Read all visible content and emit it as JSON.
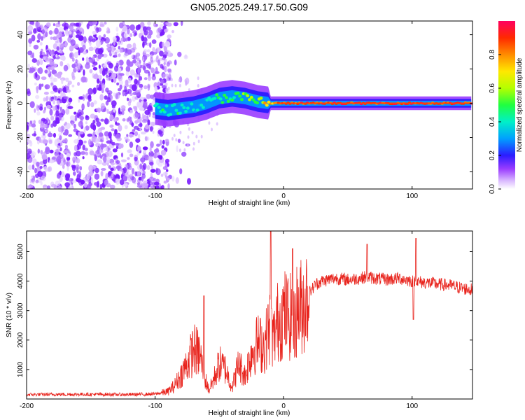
{
  "title": "GN05.2025.249.17.50.G09",
  "colors": {
    "snr_line": "#e8231c",
    "background": "#ffffff"
  },
  "chart_data": [
    {
      "type": "heatmap",
      "name": "spectrogram",
      "xlabel": "Height of straight line (km)",
      "ylabel": "Frequency (Hz)",
      "xlim": [
        -200,
        147
      ],
      "ylim": [
        -50,
        48
      ],
      "xticks": [
        -200,
        -100,
        0,
        100
      ],
      "yticks": [
        -40,
        -20,
        0,
        20,
        40
      ],
      "colorbar": {
        "label": "Normalized spectral amplitude",
        "range": [
          0,
          1
        ],
        "ticks": [
          0.0,
          0.2,
          0.4,
          0.6,
          0.8
        ]
      },
      "noise_region": {
        "x": [
          -200,
          -88
        ],
        "amplitude": 0.15
      },
      "signal_track": [
        {
          "x": -100,
          "freq": -3,
          "amplitude": 0.35
        },
        {
          "x": -90,
          "freq": -4,
          "amplitude": 0.4
        },
        {
          "x": -80,
          "freq": -3,
          "amplitude": 0.4
        },
        {
          "x": -70,
          "freq": -2,
          "amplitude": 0.35
        },
        {
          "x": -60,
          "freq": 0,
          "amplitude": 0.35
        },
        {
          "x": -50,
          "freq": 3,
          "amplitude": 0.45
        },
        {
          "x": -40,
          "freq": 4,
          "amplitude": 0.45
        },
        {
          "x": -30,
          "freq": 3,
          "amplitude": 0.5
        },
        {
          "x": -20,
          "freq": 1,
          "amplitude": 0.55
        },
        {
          "x": -10,
          "freq": 0,
          "amplitude": 0.75
        },
        {
          "x": 0,
          "freq": 0,
          "amplitude": 0.8
        },
        {
          "x": 20,
          "freq": 0,
          "amplitude": 0.9
        },
        {
          "x": 50,
          "freq": 0,
          "amplitude": 0.9
        },
        {
          "x": 100,
          "freq": 0,
          "amplitude": 0.9
        },
        {
          "x": 147,
          "freq": 0,
          "amplitude": 0.85
        }
      ]
    },
    {
      "type": "line",
      "name": "snr",
      "xlabel": "Height of straight line (km)",
      "ylabel": "SNR (10 * v/v)",
      "xlim": [
        -200,
        147
      ],
      "ylim": [
        0,
        5700
      ],
      "xticks": [
        -200,
        -100,
        0,
        100
      ],
      "yticks": [
        1000,
        2000,
        3000,
        4000,
        5000
      ],
      "series": [
        {
          "name": "SNR",
          "x": [
            -200,
            -160,
            -120,
            -100,
            -90,
            -85,
            -80,
            -75,
            -70,
            -65,
            -62,
            -58,
            -55,
            -50,
            -45,
            -40,
            -35,
            -30,
            -25,
            -20,
            -15,
            -12,
            -10,
            -8,
            -5,
            0,
            5,
            8,
            10,
            15,
            20,
            25,
            30,
            40,
            50,
            60,
            65,
            70,
            80,
            90,
            100,
            110,
            120,
            130,
            140,
            147
          ],
          "y": [
            150,
            160,
            150,
            170,
            250,
            450,
            800,
            1200,
            1700,
            1500,
            800,
            300,
            600,
            1200,
            1000,
            400,
            1200,
            800,
            1600,
            1900,
            1800,
            2300,
            2500,
            2000,
            2600,
            2900,
            2800,
            2400,
            3000,
            3200,
            3600,
            3900,
            4000,
            4100,
            4050,
            4100,
            4150,
            4100,
            4050,
            4100,
            4000,
            3950,
            3900,
            3850,
            3750,
            3700
          ]
        }
      ],
      "spikes": [
        {
          "x": -62,
          "y": 3500
        },
        {
          "x": -10,
          "y": 5700
        },
        {
          "x": 7,
          "y": 5100
        },
        {
          "x": 65,
          "y": 5250
        },
        {
          "x": 103,
          "y": 5450
        },
        {
          "x": 101,
          "y": 2700
        }
      ]
    }
  ]
}
